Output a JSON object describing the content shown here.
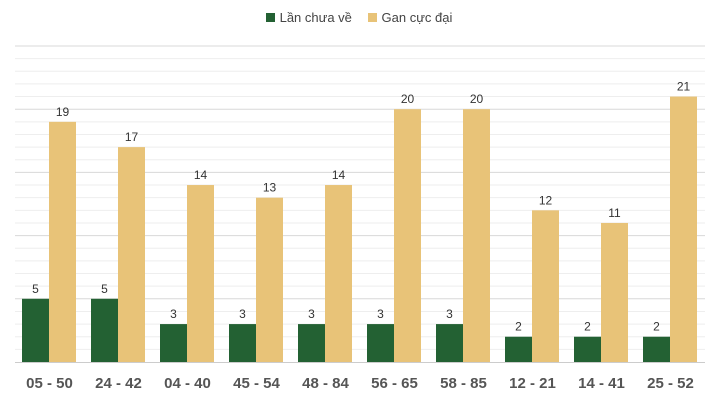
{
  "chart_data": {
    "type": "bar",
    "title": "",
    "xlabel": "",
    "ylabel": "",
    "ylim": [
      0,
      25
    ],
    "grid": true,
    "legend_position": "top-center",
    "categories": [
      "05 - 50",
      "24 - 42",
      "04 - 40",
      "45 - 54",
      "48 - 84",
      "56 - 65",
      "58 - 85",
      "12 - 21",
      "14 - 41",
      "25 - 52"
    ],
    "series": [
      {
        "name": "Lần chưa về",
        "color": "#236133",
        "values": [
          5,
          5,
          3,
          3,
          3,
          3,
          3,
          2,
          2,
          2
        ]
      },
      {
        "name": "Gan cực đại",
        "color": "#e8c378",
        "values": [
          19,
          17,
          14,
          13,
          14,
          20,
          20,
          12,
          11,
          21
        ]
      }
    ]
  }
}
